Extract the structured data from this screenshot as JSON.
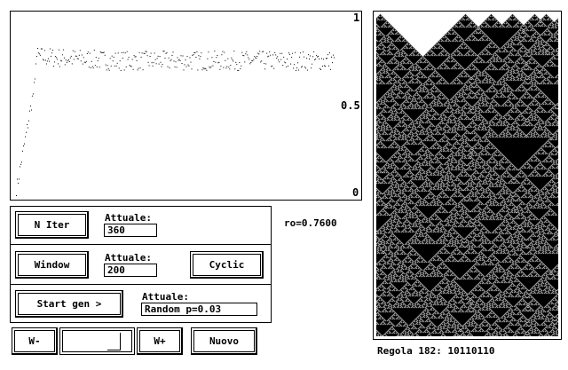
{
  "plot": {
    "y_top": "1",
    "y_mid": "0.5",
    "y_bottom": "0"
  },
  "chart_data": {
    "type": "scatter",
    "x_range": [
      0,
      360
    ],
    "ylim": [
      0,
      1
    ],
    "approx_plateau_mean": 0.76
  },
  "controls": {
    "niter_label": "N Iter",
    "niter_current_label": "Attuale:",
    "niter_value": "360",
    "window_label": "Window",
    "window_current_label": "Attuale:",
    "window_value": "200",
    "cyclic_label": "Cyclic",
    "startgen_label": "Start gen >",
    "startgen_current_label": "Attuale:",
    "startgen_value": "Random p=0.03"
  },
  "ro_readout": "ro=0.7600",
  "bottom_bar": {
    "wminus_label": "W-",
    "wplus_label": "W+",
    "nuovo_label": "Nuovo"
  },
  "automaton": {
    "rule_label": "Regola 182:  10110110"
  }
}
